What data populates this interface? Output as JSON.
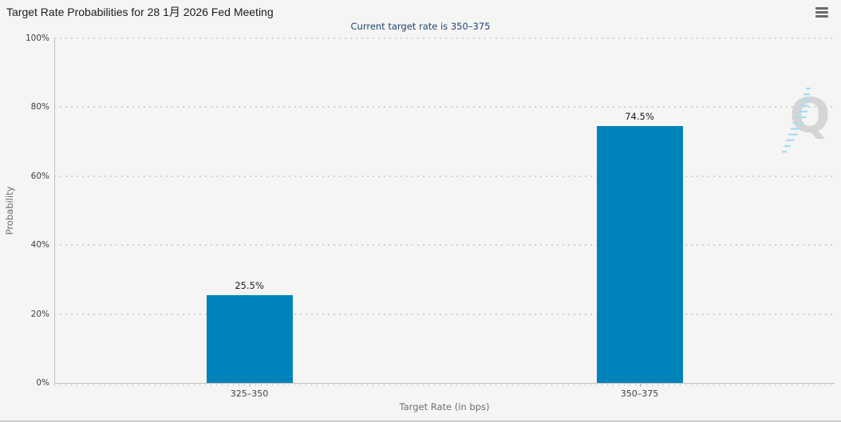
{
  "header": {
    "menu_tooltip": "Chart context menu"
  },
  "chart_data": {
    "type": "bar",
    "title": "Target Rate Probabilities for 28 1月 2026 Fed Meeting",
    "subtitle": "Current target rate is 350–375",
    "categories": [
      "325–350",
      "350–375"
    ],
    "values": [
      25.5,
      74.5
    ],
    "value_labels": [
      "25.5%",
      "74.5%"
    ],
    "xlabel": "Target Rate (in bps)",
    "ylabel": "Probability",
    "ylim": [
      0,
      100
    ],
    "yticks": [
      "0%",
      "20%",
      "40%",
      "60%",
      "80%",
      "100%"
    ],
    "grid": "horizontal-dotted",
    "legend": "none",
    "bar_color": "#0083bb",
    "watermark_letter": "Q"
  },
  "colors": {
    "background": "#f5f5f4",
    "bar": "#0083bb",
    "subtitle_text": "#1f4571",
    "axis_tick_text": "#3f3f41",
    "axis_title_text": "#6e6e6e",
    "watermark_q": "#d5d5d5",
    "watermark_dashes": "#a9ddf2"
  },
  "icons": {
    "menu": "hamburger-icon",
    "watermark": "quikstrike-q-logo"
  }
}
